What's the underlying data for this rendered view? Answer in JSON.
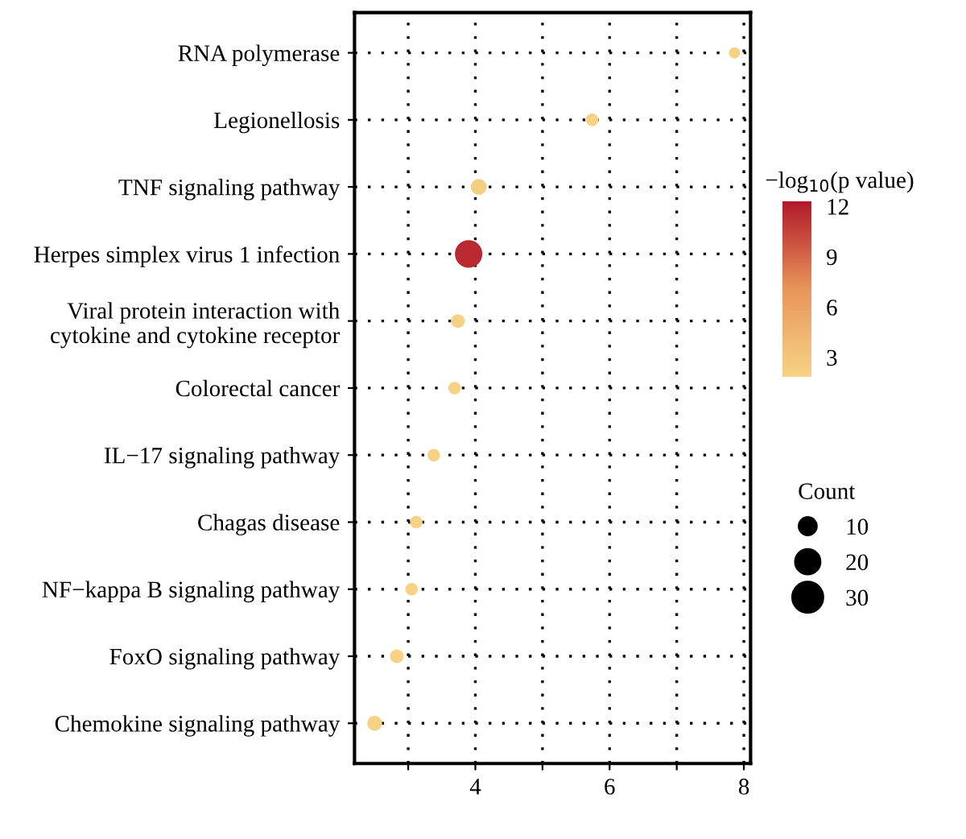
{
  "chart_data": {
    "type": "bubble",
    "categories": [
      "RNA polymerase",
      "Legionellosis",
      "TNF signaling pathway",
      "Herpes simplex virus 1 infection",
      "Viral protein interaction with\ncytokine and cytokine receptor",
      "Colorectal cancer",
      "IL−17 signaling pathway",
      "Chagas disease",
      "NF−kappa B signaling pathway",
      "FoxO signaling pathway",
      "Chemokine signaling pathway"
    ],
    "values": [
      7.86,
      5.74,
      4.05,
      3.9,
      3.74,
      3.69,
      3.38,
      3.12,
      3.05,
      2.83,
      2.5
    ],
    "sizes": [
      4,
      5,
      8,
      24,
      6,
      5,
      5,
      5,
      5,
      6,
      7
    ],
    "cvalues": [
      2,
      2,
      2.3,
      11.6,
      2.1,
      2,
      2,
      2,
      2,
      2,
      2
    ],
    "size_legend": [
      10,
      20,
      30
    ],
    "legend_title": "Count",
    "clabel": "−log$_{10}$(p value)",
    "clim": [
      1.8,
      12.3
    ],
    "cticks": [
      3,
      6,
      9,
      12
    ],
    "orientation": "horizontal",
    "xlim": [
      2.2,
      8.1
    ],
    "xticks": [
      {
        "value": 3,
        "label": null
      },
      4,
      {
        "value": 5,
        "label": null
      },
      6,
      {
        "value": 7,
        "label": null
      },
      8
    ],
    "grid": true
  }
}
